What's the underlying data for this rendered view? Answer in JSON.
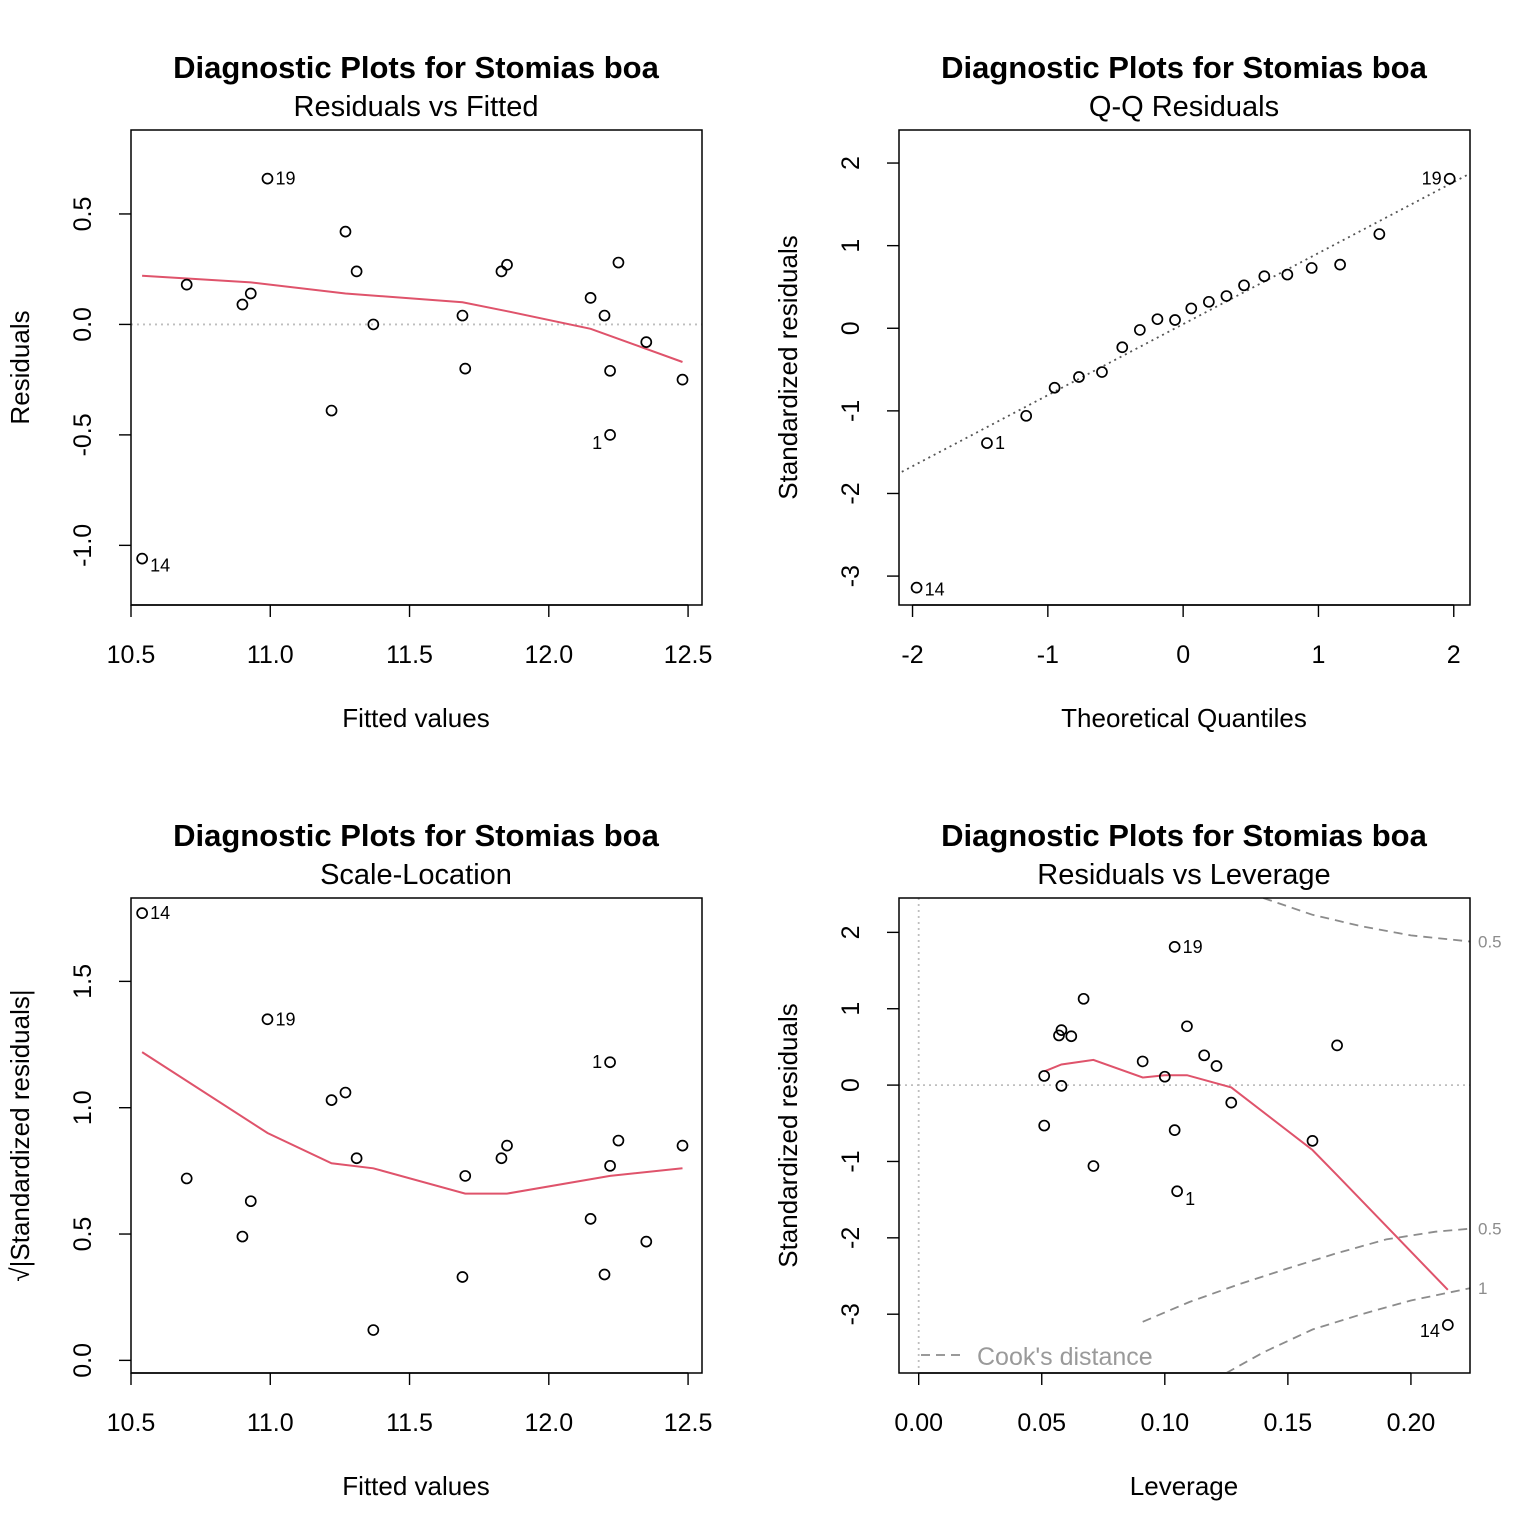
{
  "colors": {
    "smooth": "#DF536B",
    "points": "#000000",
    "reference": "#BEBEBE",
    "qqline": "#555555",
    "cook": "#8C8C8C"
  },
  "chart_data": [
    {
      "type": "scatter",
      "title": "Diagnostic Plots for Stomias boa",
      "subtitle": "Residuals vs Fitted",
      "xlabel": "Fitted values",
      "ylabel": "Residuals",
      "xlim": [
        10.5,
        12.55
      ],
      "ylim": [
        -1.27,
        0.88
      ],
      "xticks": [
        "10.5",
        "11.0",
        "11.5",
        "12.0",
        "12.5"
      ],
      "xtick_values": [
        10.5,
        11.0,
        11.5,
        12.0,
        12.5
      ],
      "yticks": [
        "-1.0",
        "-0.5",
        "0.0",
        "0.5"
      ],
      "ytick_values": [
        -1.0,
        -0.5,
        0.0,
        0.5
      ],
      "x": [
        10.54,
        10.7,
        10.9,
        10.93,
        10.99,
        11.22,
        11.27,
        11.31,
        11.37,
        11.69,
        11.7,
        11.83,
        11.85,
        12.15,
        12.2,
        12.22,
        12.22,
        12.25,
        12.35,
        12.48
      ],
      "y": [
        -1.06,
        0.18,
        0.09,
        0.14,
        0.66,
        -0.39,
        0.42,
        0.24,
        0.0,
        0.04,
        -0.2,
        0.24,
        0.27,
        0.12,
        0.04,
        -0.21,
        -0.5,
        0.28,
        -0.08,
        -0.25
      ],
      "point_labels": [
        {
          "index": 0,
          "text": "14",
          "side": "right"
        },
        {
          "index": 4,
          "text": "19",
          "side": "right"
        },
        {
          "index": 16,
          "text": "1",
          "side": "left"
        }
      ],
      "smooth": {
        "x": [
          10.54,
          10.93,
          11.27,
          11.69,
          11.85,
          12.15,
          12.48
        ],
        "y": [
          0.22,
          0.19,
          0.14,
          0.1,
          0.06,
          -0.02,
          -0.17
        ]
      },
      "hline": 0
    },
    {
      "type": "scatter",
      "title": "Diagnostic Plots for Stomias boa",
      "subtitle": "Q-Q Residuals",
      "xlabel": "Theoretical Quantiles",
      "ylabel": "Standardized residuals",
      "xlim": [
        -2.1,
        2.12
      ],
      "ylim": [
        -3.35,
        2.4
      ],
      "xticks": [
        "-2",
        "-1",
        "0",
        "1",
        "2"
      ],
      "xtick_values": [
        -2,
        -1,
        0,
        1,
        2
      ],
      "yticks": [
        "-3",
        "-2",
        "-1",
        "0",
        "1",
        "2"
      ],
      "ytick_values": [
        -3,
        -2,
        -1,
        0,
        1,
        2
      ],
      "x": [
        -1.97,
        -1.45,
        -1.16,
        -0.95,
        -0.77,
        -0.6,
        -0.45,
        -0.32,
        -0.19,
        -0.06,
        0.06,
        0.19,
        0.32,
        0.45,
        0.6,
        0.77,
        0.95,
        1.16,
        1.45,
        1.97
      ],
      "y": [
        -3.14,
        -1.39,
        -1.06,
        -0.72,
        -0.59,
        -0.53,
        -0.23,
        -0.02,
        0.11,
        0.1,
        0.24,
        0.32,
        0.39,
        0.52,
        0.63,
        0.65,
        0.73,
        0.77,
        1.14,
        1.81
      ],
      "point_labels": [
        {
          "index": 0,
          "text": "14",
          "side": "right"
        },
        {
          "index": 1,
          "text": "1",
          "side": "right"
        },
        {
          "index": 19,
          "text": "19",
          "side": "left"
        }
      ],
      "qqline": {
        "intercept": 0.05,
        "slope": 0.86
      }
    },
    {
      "type": "scatter",
      "title": "Diagnostic Plots for Stomias boa",
      "subtitle": "Scale-Location",
      "xlabel": "Fitted values",
      "ylabel": "√|Standardized residuals|",
      "xlim": [
        10.5,
        12.55
      ],
      "ylim": [
        -0.05,
        1.83
      ],
      "xticks": [
        "10.5",
        "11.0",
        "11.5",
        "12.0",
        "12.5"
      ],
      "xtick_values": [
        10.5,
        11.0,
        11.5,
        12.0,
        12.5
      ],
      "yticks": [
        "0.0",
        "0.5",
        "1.0",
        "1.5"
      ],
      "ytick_values": [
        0.0,
        0.5,
        1.0,
        1.5
      ],
      "x": [
        10.54,
        10.7,
        10.9,
        10.93,
        10.99,
        11.22,
        11.27,
        11.31,
        11.37,
        11.69,
        11.7,
        11.83,
        11.85,
        12.15,
        12.2,
        12.22,
        12.22,
        12.25,
        12.35,
        12.48
      ],
      "y": [
        1.77,
        0.72,
        0.49,
        0.63,
        1.35,
        1.03,
        1.06,
        0.8,
        0.12,
        0.33,
        0.73,
        0.8,
        0.85,
        0.56,
        0.34,
        0.77,
        1.18,
        0.87,
        0.47,
        0.85
      ],
      "point_labels": [
        {
          "index": 0,
          "text": "14",
          "side": "right"
        },
        {
          "index": 4,
          "text": "19",
          "side": "right"
        },
        {
          "index": 16,
          "text": "1",
          "side": "left"
        }
      ],
      "smooth": {
        "x": [
          10.54,
          10.99,
          11.22,
          11.37,
          11.7,
          11.85,
          12.22,
          12.48
        ],
        "y": [
          1.22,
          0.9,
          0.78,
          0.76,
          0.66,
          0.66,
          0.73,
          0.76
        ]
      }
    },
    {
      "type": "scatter",
      "title": "Diagnostic Plots for Stomias boa",
      "subtitle": "Residuals vs Leverage",
      "xlabel": "Leverage",
      "ylabel": "Standardized residuals",
      "xlim": [
        -0.008,
        0.224
      ],
      "ylim": [
        -3.77,
        2.45
      ],
      "xticks": [
        "0.00",
        "0.05",
        "0.10",
        "0.15",
        "0.20"
      ],
      "xtick_values": [
        0.0,
        0.05,
        0.1,
        0.15,
        0.2
      ],
      "yticks": [
        "-3",
        "-2",
        "-1",
        "0",
        "1",
        "2"
      ],
      "ytick_values": [
        -3,
        -2,
        -1,
        0,
        1,
        2
      ],
      "x": [
        0.051,
        0.051,
        0.057,
        0.058,
        0.058,
        0.062,
        0.067,
        0.071,
        0.091,
        0.1,
        0.104,
        0.104,
        0.105,
        0.109,
        0.116,
        0.121,
        0.127,
        0.16,
        0.17,
        0.215
      ],
      "y": [
        0.12,
        -0.53,
        0.65,
        0.72,
        -0.01,
        0.64,
        1.13,
        -1.06,
        0.31,
        0.11,
        1.81,
        -0.59,
        -1.39,
        0.77,
        0.39,
        0.25,
        -0.23,
        -0.73,
        0.52,
        -3.14
      ],
      "point_labels": [
        {
          "index": 10,
          "text": "19",
          "side": "right"
        },
        {
          "index": 12,
          "text": "1",
          "side": "right-low"
        },
        {
          "index": 19,
          "text": "14",
          "side": "left-low"
        }
      ],
      "smooth": {
        "x": [
          0.051,
          0.058,
          0.071,
          0.091,
          0.1,
          0.109,
          0.127,
          0.16,
          0.17,
          0.215
        ],
        "y": [
          0.18,
          0.27,
          0.33,
          0.1,
          0.13,
          0.13,
          -0.03,
          -0.85,
          -1.18,
          -2.68
        ]
      },
      "hline": 0,
      "vline": 0,
      "cook_contours": [
        {
          "label": "0.5",
          "sign": 1,
          "x": [
            0.14,
            0.16,
            0.18,
            0.2,
            0.224
          ],
          "y": [
            2.45,
            2.23,
            2.08,
            1.96,
            1.88
          ]
        },
        {
          "label": "0.5",
          "sign": -1,
          "x": [
            0.091,
            0.11,
            0.13,
            0.15,
            0.17,
            0.19,
            0.21,
            0.224
          ],
          "y": [
            -3.1,
            -2.84,
            -2.61,
            -2.4,
            -2.2,
            -2.02,
            -1.92,
            -1.88
          ]
        },
        {
          "label": "1",
          "sign": -1,
          "x": [
            0.125,
            0.14,
            0.16,
            0.18,
            0.2,
            0.224
          ],
          "y": [
            -3.77,
            -3.5,
            -3.2,
            -3.0,
            -2.82,
            -2.66
          ]
        }
      ],
      "legend": {
        "text": "Cook's distance"
      }
    }
  ]
}
